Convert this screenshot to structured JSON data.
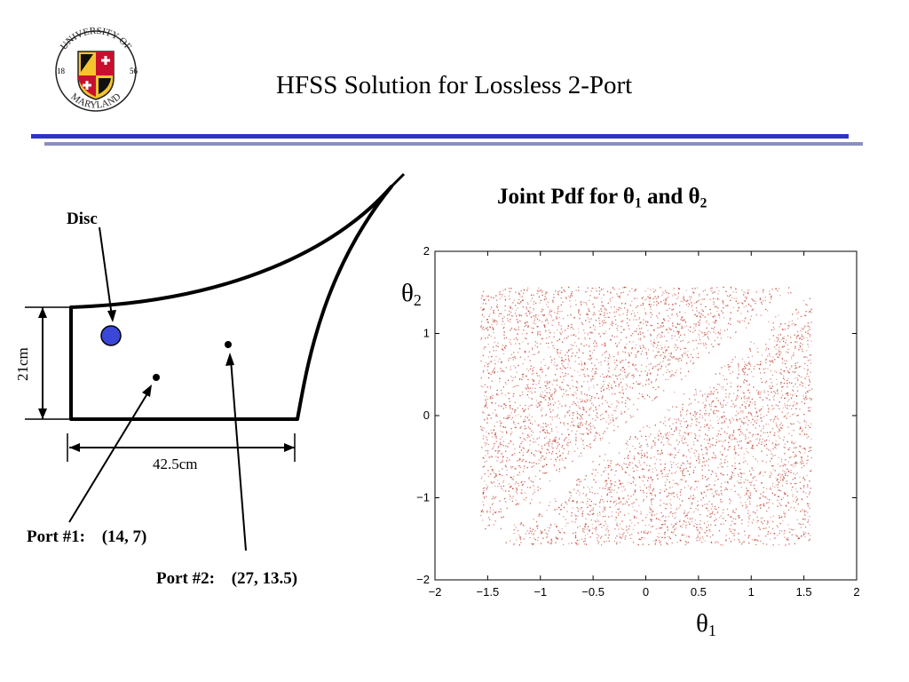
{
  "slide": {
    "title": "HFSS Solution for Lossless 2-Port"
  },
  "logo": {
    "ring_top": "UNIVERSITY OF",
    "ring_bottom": "MARYLAND",
    "year_left": "18",
    "year_right": "56"
  },
  "diagram": {
    "disc_label": "Disc",
    "height_label": "21cm",
    "width_label": "42.5cm",
    "port1_label": "Port #1:",
    "port1_coords": "(14, 7)",
    "port2_label": "Port #2:",
    "port2_coords": "(27, 13.5)",
    "disc_color": "#3a47d8"
  },
  "plot_title": {
    "text": "Joint Pdf for ",
    "sym1": "θ",
    "sub1": "1",
    "mid": " and ",
    "sym2": "θ",
    "sub2": "2"
  },
  "axes_symbols": {
    "x_sym": "θ",
    "x_sub": "1",
    "y_sym": "θ",
    "y_sub": "2"
  },
  "chart_data": {
    "type": "scatter",
    "x_range": [
      -2,
      2
    ],
    "y_range": [
      -2,
      2
    ],
    "x_ticks": [
      "−2",
      "−1.5",
      "−1",
      "−0.5",
      "0",
      "0.5",
      "1",
      "1.5",
      "2"
    ],
    "y_ticks": [
      "2",
      "1",
      "0",
      "−1",
      "−2"
    ],
    "support": {
      "x": [
        -1.57,
        1.57
      ],
      "y": [
        -1.57,
        1.57
      ]
    },
    "sparse_band": "diagonal θ2 = θ1",
    "point_color": "#c0392b",
    "grid": false
  }
}
